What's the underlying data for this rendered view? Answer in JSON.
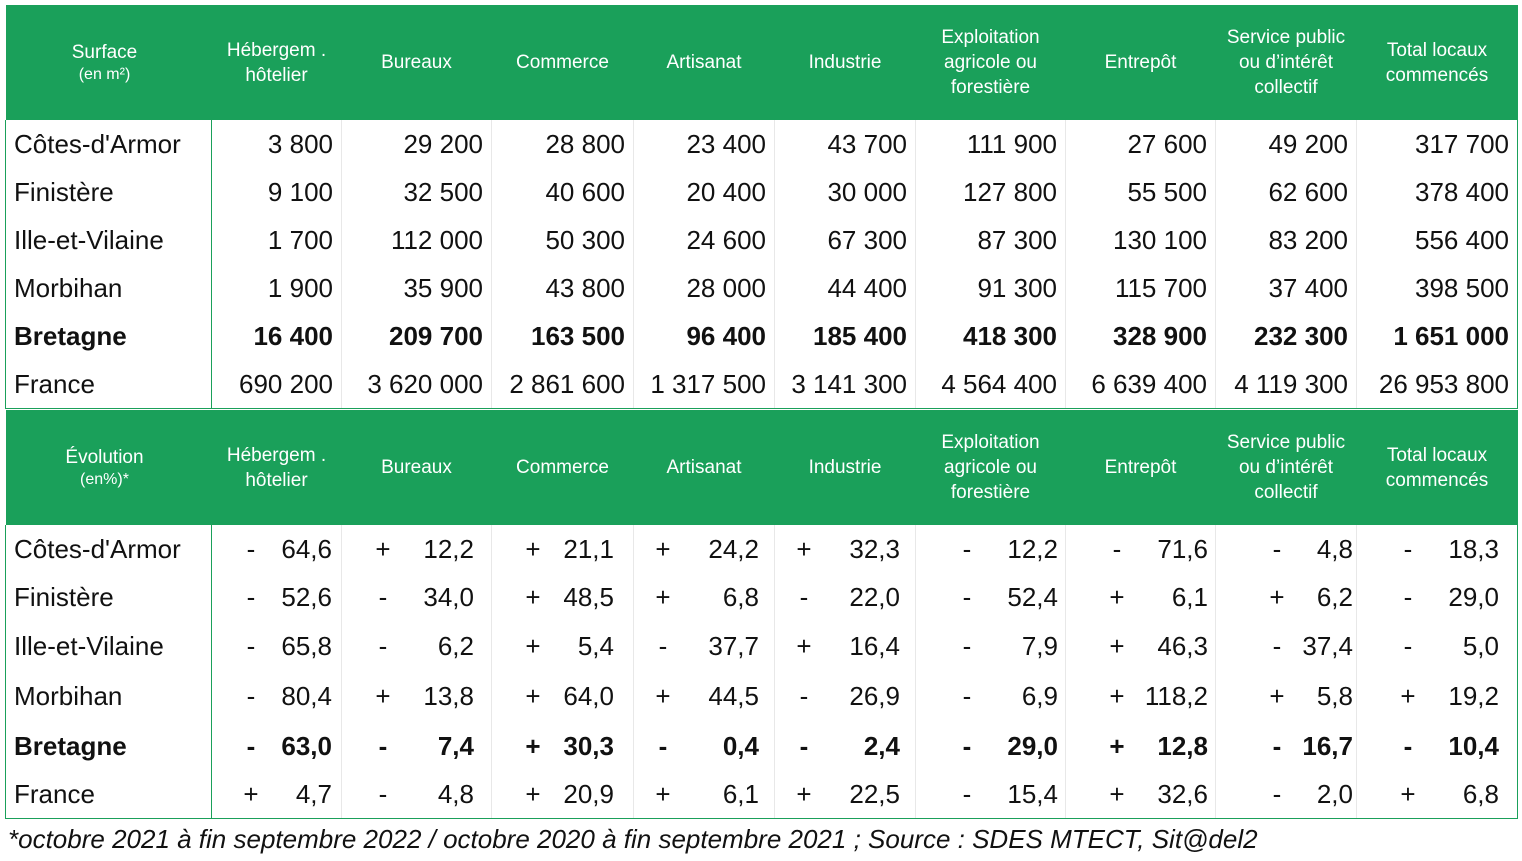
{
  "surface": {
    "header_title": "Surface",
    "header_unit": "(en m²)",
    "columns": [
      "Hébergem . hôtelier",
      "Bureaux",
      "Commerce",
      "Artisanat",
      "Industrie",
      "Exploitation agricole ou forestière",
      "Entrepôt",
      "Service public ou d’intérêt collectif",
      "Total locaux commencés"
    ],
    "rows": [
      {
        "label": "Côtes-d'Armor",
        "bold": false,
        "values": [
          "3 800",
          "29 200",
          "28 800",
          "23 400",
          "43 700",
          "111 900",
          "27 600",
          "49 200",
          "317 700"
        ]
      },
      {
        "label": "Finistère",
        "bold": false,
        "values": [
          "9 100",
          "32 500",
          "40 600",
          "20 400",
          "30 000",
          "127 800",
          "55 500",
          "62 600",
          "378 400"
        ]
      },
      {
        "label": "Ille-et-Vilaine",
        "bold": false,
        "values": [
          "1 700",
          "112 000",
          "50 300",
          "24 600",
          "67 300",
          "87 300",
          "130 100",
          "83 200",
          "556 400"
        ]
      },
      {
        "label": "Morbihan",
        "bold": false,
        "values": [
          "1 900",
          "35 900",
          "43 800",
          "28 000",
          "44 400",
          "91 300",
          "115 700",
          "37 400",
          "398 500"
        ]
      },
      {
        "label": "Bretagne",
        "bold": true,
        "values": [
          "16 400",
          "209 700",
          "163 500",
          "96 400",
          "185 400",
          "418 300",
          "328 900",
          "232 300",
          "1 651 000"
        ]
      },
      {
        "label": "France",
        "bold": false,
        "values": [
          "690 200",
          "3 620 000",
          "2 861 600",
          "1 317 500",
          "3 141 300",
          "4 564 400",
          "6 639 400",
          "4 119 300",
          "26 953 800"
        ]
      }
    ]
  },
  "evolution": {
    "header_title": "Évolution",
    "header_unit": "(en%)*",
    "columns": [
      "Hébergem . hôtelier",
      "Bureaux",
      "Commerce",
      "Artisanat",
      "Industrie",
      "Exploitation agricole ou forestière",
      "Entrepôt",
      "Service public ou d’intérêt collectif",
      "Total locaux commencés"
    ],
    "rows": [
      {
        "label": "Côtes-d'Armor",
        "bold": false,
        "values": [
          {
            "sign": "-",
            "value": "64,6"
          },
          {
            "sign": "+",
            "value": "12,2"
          },
          {
            "sign": "+",
            "value": "21,1"
          },
          {
            "sign": "+",
            "value": "24,2"
          },
          {
            "sign": "+",
            "value": "32,3"
          },
          {
            "sign": "-",
            "value": "12,2"
          },
          {
            "sign": "-",
            "value": "71,6"
          },
          {
            "sign": "-",
            "value": "4,8"
          },
          {
            "sign": "-",
            "value": "18,3"
          }
        ]
      },
      {
        "label": "Finistère",
        "bold": false,
        "values": [
          {
            "sign": "-",
            "value": "52,6"
          },
          {
            "sign": "-",
            "value": "34,0"
          },
          {
            "sign": "+",
            "value": "48,5"
          },
          {
            "sign": "+",
            "value": "6,8"
          },
          {
            "sign": "-",
            "value": "22,0"
          },
          {
            "sign": "-",
            "value": "52,4"
          },
          {
            "sign": "+",
            "value": "6,1"
          },
          {
            "sign": "+",
            "value": "6,2"
          },
          {
            "sign": "-",
            "value": "29,0"
          }
        ]
      },
      {
        "label": "Ille-et-Vilaine",
        "bold": false,
        "values": [
          {
            "sign": "-",
            "value": "65,8"
          },
          {
            "sign": "-",
            "value": "6,2"
          },
          {
            "sign": "+",
            "value": "5,4"
          },
          {
            "sign": "-",
            "value": "37,7"
          },
          {
            "sign": "+",
            "value": "16,4"
          },
          {
            "sign": "-",
            "value": "7,9"
          },
          {
            "sign": "+",
            "value": "46,3"
          },
          {
            "sign": "-",
            "value": "37,4"
          },
          {
            "sign": "-",
            "value": "5,0"
          }
        ]
      },
      {
        "label": "Morbihan",
        "bold": false,
        "values": [
          {
            "sign": "-",
            "value": "80,4"
          },
          {
            "sign": "+",
            "value": "13,8"
          },
          {
            "sign": "+",
            "value": "64,0"
          },
          {
            "sign": "+",
            "value": "44,5"
          },
          {
            "sign": "-",
            "value": "26,9"
          },
          {
            "sign": "-",
            "value": "6,9"
          },
          {
            "sign": "+",
            "value": "118,2"
          },
          {
            "sign": "+",
            "value": "5,8"
          },
          {
            "sign": "+",
            "value": "19,2"
          }
        ]
      },
      {
        "label": "Bretagne",
        "bold": true,
        "values": [
          {
            "sign": "-",
            "value": "63,0"
          },
          {
            "sign": "-",
            "value": "7,4"
          },
          {
            "sign": "+",
            "value": "30,3"
          },
          {
            "sign": "-",
            "value": "0,4"
          },
          {
            "sign": "-",
            "value": "2,4"
          },
          {
            "sign": "-",
            "value": "29,0"
          },
          {
            "sign": "+",
            "value": "12,8"
          },
          {
            "sign": "-",
            "value": "16,7"
          },
          {
            "sign": "-",
            "value": "10,4"
          }
        ]
      },
      {
        "label": "France",
        "bold": false,
        "values": [
          {
            "sign": "+",
            "value": "4,7"
          },
          {
            "sign": "-",
            "value": "4,8"
          },
          {
            "sign": "+",
            "value": "20,9"
          },
          {
            "sign": "+",
            "value": "6,1"
          },
          {
            "sign": "+",
            "value": "22,5"
          },
          {
            "sign": "-",
            "value": "15,4"
          },
          {
            "sign": "+",
            "value": "32,6"
          },
          {
            "sign": "-",
            "value": "2,0"
          },
          {
            "sign": "+",
            "value": "6,8"
          }
        ]
      }
    ]
  },
  "footnote": "*octobre 2021 à fin septembre 2022 / octobre 2020 à fin septembre 2021 ; Source : SDES MTECT, Sit@del2",
  "colors": {
    "header_bg": "#1aa05a",
    "header_text": "#ffffff",
    "body_text": "#111111"
  }
}
